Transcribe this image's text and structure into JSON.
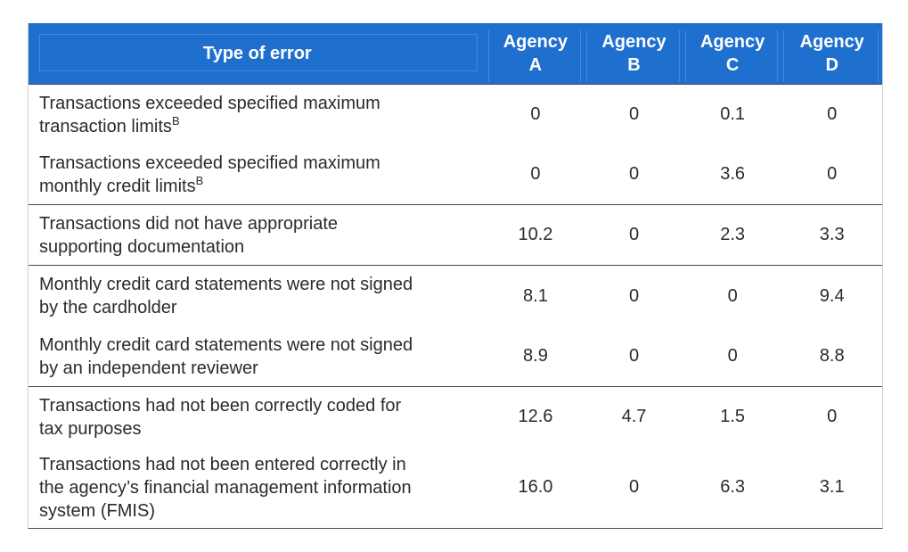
{
  "header": {
    "type_label": "Type of error",
    "agencies": [
      {
        "line1": "Agency",
        "line2": "A"
      },
      {
        "line1": "Agency",
        "line2": "B"
      },
      {
        "line1": "Agency",
        "line2": "C"
      },
      {
        "line1": "Agency",
        "line2": "D"
      }
    ]
  },
  "rows": [
    {
      "line1": "Transactions exceeded specified maximum",
      "line2": "transaction limits",
      "sup": "B",
      "a": "0",
      "b": "0",
      "c": "0.1",
      "d": "0"
    },
    {
      "line1": "Transactions exceeded specified maximum",
      "line2": "monthly credit limits",
      "sup": "B",
      "a": "0",
      "b": "0",
      "c": "3.6",
      "d": "0"
    },
    {
      "line1": "Transactions did not have appropriate",
      "line2": "supporting documentation",
      "a": "10.2",
      "b": "0",
      "c": "2.3",
      "d": "3.3"
    },
    {
      "line1": "Monthly credit card statements were not signed",
      "line2": "by the cardholder",
      "a": "8.1",
      "b": "0",
      "c": "0",
      "d": "9.4"
    },
    {
      "line1": "Monthly credit card statements were not signed",
      "line2": "by an independent reviewer",
      "a": "8.9",
      "b": "0",
      "c": "0",
      "d": "8.8"
    },
    {
      "line1": "Transactions had not been correctly coded for",
      "line2": "tax purposes",
      "a": "12.6",
      "b": "4.7",
      "c": "1.5",
      "d": "0"
    },
    {
      "line1": "Transactions had not been entered correctly in",
      "line2": "the agency’s financial management information",
      "line3": "system (FMIS)",
      "a": "16.0",
      "b": "0",
      "c": "6.3",
      "d": "3.1"
    }
  ]
}
